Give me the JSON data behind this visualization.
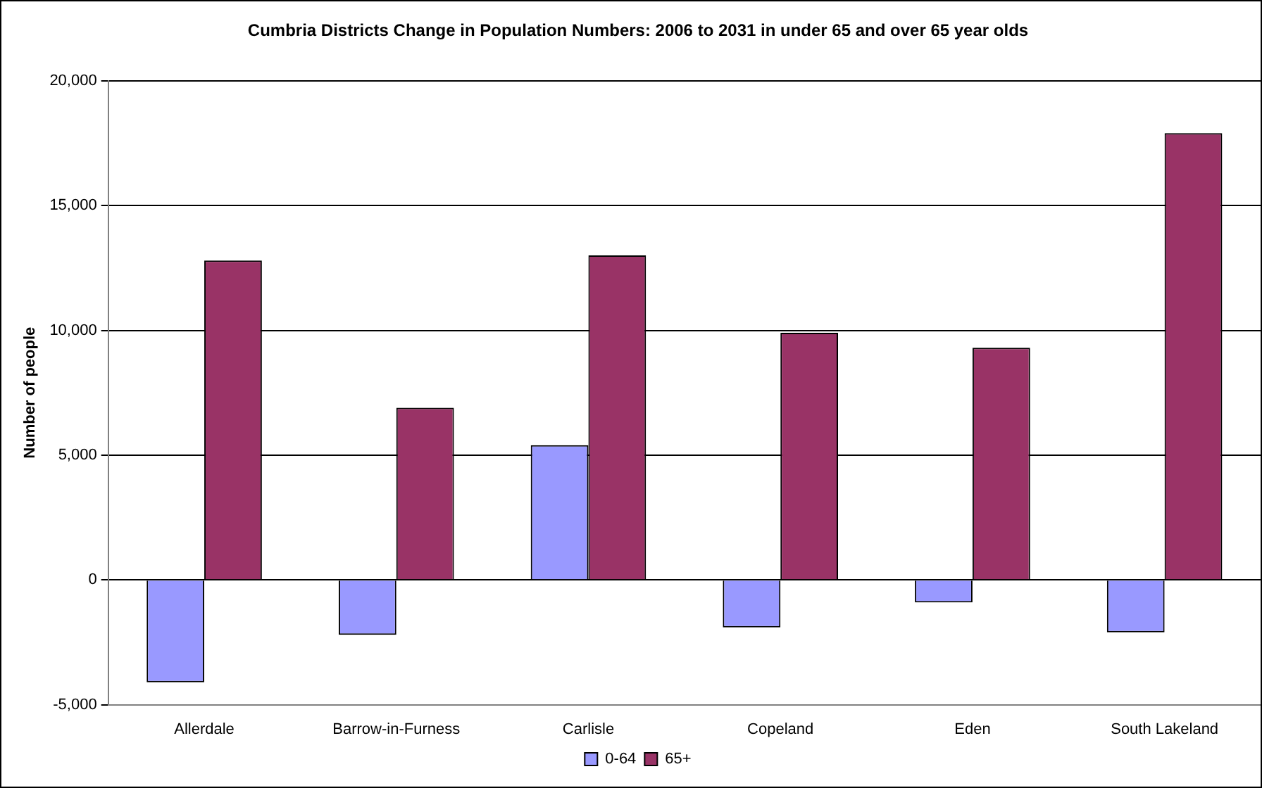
{
  "chart_data": {
    "type": "bar",
    "title": "Cumbria Districts Change in Population Numbers: 2006 to 2031 in under 65 and over 65 year olds",
    "ylabel": "Number of people",
    "categories": [
      "Allerdale",
      "Barrow-in-Furness",
      "Carlisle",
      "Copeland",
      "Eden",
      "South Lakeland"
    ],
    "series": [
      {
        "name": "0-64",
        "color": "#9999ff",
        "values": [
          -4100,
          -2200,
          5400,
          -1900,
          -900,
          -2100
        ]
      },
      {
        "name": "65+",
        "color": "#993366",
        "values": [
          12800,
          6900,
          13000,
          9900,
          9300,
          17900
        ]
      }
    ],
    "ylim": [
      -5000,
      20000
    ],
    "yticks": [
      {
        "value": -5000,
        "label": "-5,000"
      },
      {
        "value": 0,
        "label": "0"
      },
      {
        "value": 5000,
        "label": "5,000"
      },
      {
        "value": 10000,
        "label": "10,000"
      },
      {
        "value": 15000,
        "label": "15,000"
      },
      {
        "value": 20000,
        "label": "20,000"
      }
    ],
    "grid": "y",
    "legend": "bottom"
  }
}
